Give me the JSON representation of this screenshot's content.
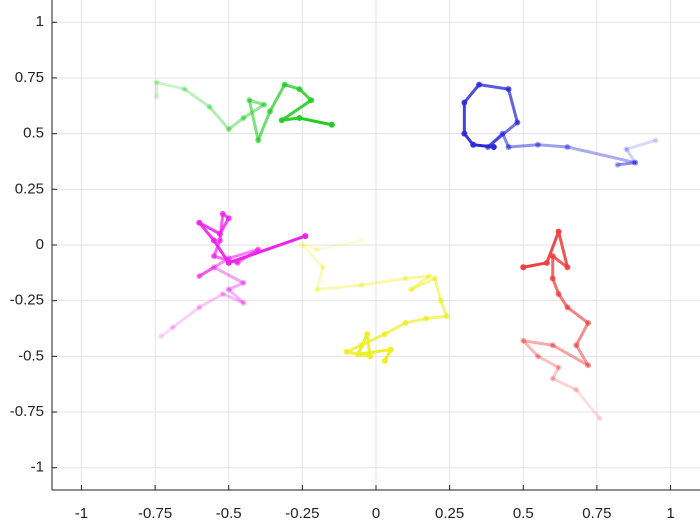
{
  "chart_data": {
    "type": "trajectory",
    "xlim": [
      -1.1,
      1.1
    ],
    "ylim": [
      -1.1,
      1.1
    ],
    "xticks": [
      -1,
      -0.75,
      -0.5,
      -0.25,
      0,
      0.25,
      0.5,
      0.75,
      1
    ],
    "yticks": [
      -1,
      -0.75,
      -0.5,
      -0.25,
      0,
      0.25,
      0.5,
      0.75,
      1
    ],
    "grid": true,
    "fade": true,
    "series": [
      {
        "color": "#22cc22",
        "x": [
          -0.745,
          -0.745,
          -0.65,
          -0.565,
          -0.5,
          -0.45,
          -0.38,
          -0.43,
          -0.4,
          -0.36,
          -0.31,
          -0.26,
          -0.22,
          -0.32,
          -0.26,
          -0.15
        ],
        "values": [
          0.667,
          0.73,
          0.7,
          0.62,
          0.52,
          0.57,
          0.63,
          0.65,
          0.47,
          0.6,
          0.72,
          0.7,
          0.65,
          0.56,
          0.57,
          0.54
        ]
      },
      {
        "color": "#2a2ad8",
        "x": [
          0.95,
          0.85,
          0.88,
          0.82,
          0.88,
          0.65,
          0.55,
          0.45,
          0.43,
          0.38,
          0.48,
          0.45,
          0.35,
          0.3,
          0.3,
          0.33,
          0.4
        ],
        "values": [
          0.47,
          0.43,
          0.37,
          0.36,
          0.37,
          0.44,
          0.45,
          0.44,
          0.5,
          0.44,
          0.55,
          0.7,
          0.72,
          0.64,
          0.5,
          0.45,
          0.44
        ]
      },
      {
        "color": "#ee22ee",
        "x": [
          -0.73,
          -0.69,
          -0.6,
          -0.52,
          -0.45,
          -0.5,
          -0.45,
          -0.55,
          -0.6,
          -0.5,
          -0.4,
          -0.47,
          -0.55,
          -0.53,
          -0.52,
          -0.5,
          -0.53,
          -0.6,
          -0.55,
          -0.5,
          -0.24
        ],
        "values": [
          -0.41,
          -0.37,
          -0.28,
          -0.22,
          -0.26,
          -0.2,
          -0.17,
          -0.1,
          -0.14,
          -0.06,
          -0.02,
          -0.08,
          -0.05,
          0.02,
          0.14,
          0.12,
          0.05,
          0.1,
          0.02,
          -0.08,
          0.04
        ]
      },
      {
        "color": "#eeee22",
        "x": [
          -0.05,
          -0.2,
          -0.25,
          -0.18,
          -0.2,
          -0.05,
          0.1,
          0.18,
          0.12,
          0.2,
          0.22,
          0.24,
          0.17,
          0.1,
          0.03,
          -0.05,
          -0.1,
          -0.02,
          -0.03,
          -0.06,
          0.05,
          0.03
        ],
        "values": [
          0.02,
          -0.02,
          0.0,
          -0.1,
          -0.2,
          -0.18,
          -0.15,
          -0.14,
          -0.2,
          -0.15,
          -0.25,
          -0.32,
          -0.33,
          -0.35,
          -0.4,
          -0.45,
          -0.48,
          -0.5,
          -0.4,
          -0.49,
          -0.47,
          -0.52
        ]
      },
      {
        "color": "#ee4040",
        "x": [
          0.76,
          0.68,
          0.6,
          0.62,
          0.55,
          0.5,
          0.6,
          0.72,
          0.68,
          0.72,
          0.65,
          0.62,
          0.6,
          0.6,
          0.65,
          0.62,
          0.58,
          0.5
        ],
        "values": [
          -0.78,
          -0.65,
          -0.6,
          -0.55,
          -0.5,
          -0.43,
          -0.45,
          -0.54,
          -0.45,
          -0.35,
          -0.28,
          -0.22,
          -0.15,
          -0.05,
          -0.1,
          0.06,
          -0.08,
          -0.1
        ]
      }
    ]
  }
}
